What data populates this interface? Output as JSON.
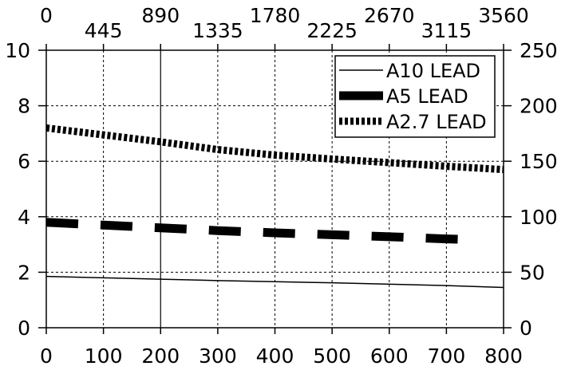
{
  "chart_data": {
    "type": "line",
    "x_bottom": {
      "ticks": [
        0,
        100,
        200,
        300,
        400,
        500,
        600,
        700,
        800
      ],
      "range": [
        0,
        800
      ]
    },
    "x_top": {
      "ticks": [
        0,
        445,
        890,
        1335,
        1780,
        2225,
        2670,
        3115,
        3560
      ],
      "range": [
        0,
        3560
      ]
    },
    "y_left": {
      "ticks": [
        0,
        2,
        4,
        6,
        8,
        10
      ],
      "range": [
        0,
        10
      ]
    },
    "y_right": {
      "ticks": [
        0,
        50,
        100,
        150,
        200,
        250
      ],
      "range": [
        0,
        250
      ]
    },
    "grid": true,
    "legend_position": "top-right",
    "series": [
      {
        "name": "A10 LEAD",
        "style": "solid-thin",
        "x": [
          0,
          100,
          200,
          300,
          400,
          500,
          600,
          700,
          800
        ],
        "y": [
          1.85,
          1.8,
          1.75,
          1.7,
          1.66,
          1.62,
          1.57,
          1.52,
          1.45
        ]
      },
      {
        "name": "A5 LEAD",
        "style": "dashed-thick",
        "x": [
          0,
          100,
          200,
          300,
          400,
          500,
          600,
          700,
          750
        ],
        "y": [
          3.8,
          3.7,
          3.6,
          3.5,
          3.42,
          3.35,
          3.28,
          3.2,
          3.17
        ]
      },
      {
        "name": "A2.7 LEAD",
        "style": "dotted-thick",
        "x": [
          0,
          100,
          200,
          300,
          400,
          500,
          600,
          700,
          800
        ],
        "y": [
          7.2,
          6.95,
          6.7,
          6.42,
          6.22,
          6.08,
          5.95,
          5.82,
          5.7
        ]
      }
    ]
  }
}
